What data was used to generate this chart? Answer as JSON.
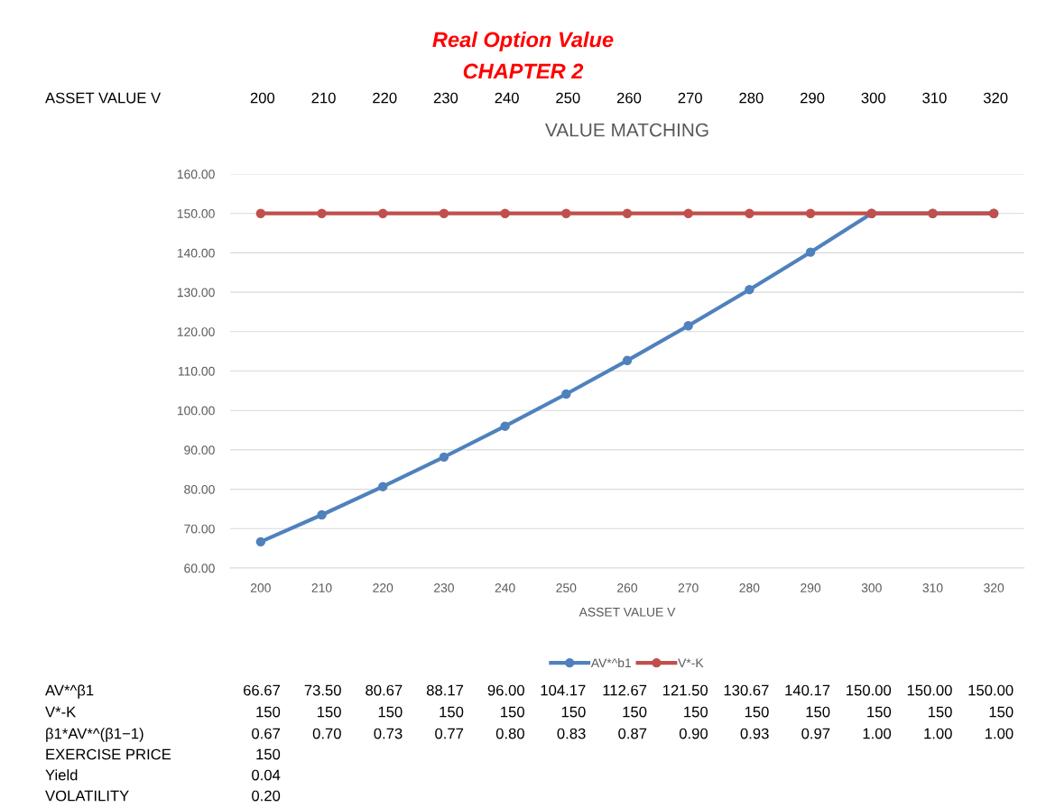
{
  "chart_data": {
    "type": "line",
    "title": "VALUE MATCHING",
    "xlabel": "ASSET VALUE V",
    "categories": [
      "200",
      "210",
      "220",
      "230",
      "240",
      "250",
      "260",
      "270",
      "280",
      "290",
      "300",
      "310",
      "320"
    ],
    "series": [
      {
        "name": "AV*^b1",
        "color": "#4f81bd",
        "values": [
          66.67,
          73.5,
          80.67,
          88.17,
          96.0,
          104.17,
          112.67,
          121.5,
          130.67,
          140.17,
          150.0,
          150.0,
          150.0
        ],
        "value_labels": [
          "66.67",
          "73.50",
          "80.67",
          "88.17",
          "96.00",
          "104.17",
          "112.67",
          "121.50",
          "130.67",
          "140.17",
          "150.00",
          "150.00",
          "150.00"
        ]
      },
      {
        "name": "V*-K",
        "color": "#c0504d",
        "values": [
          150,
          150,
          150,
          150,
          150,
          150,
          150,
          150,
          150,
          150,
          150,
          150,
          150
        ],
        "value_labels": [
          "150",
          "150",
          "150",
          "150",
          "150",
          "150",
          "150",
          "150",
          "150",
          "150",
          "150",
          "150",
          "150"
        ]
      }
    ],
    "ylim": [
      60,
      160
    ],
    "yticks": [
      {
        "value": 60,
        "label": "60.00"
      },
      {
        "value": 70,
        "label": "70.00"
      },
      {
        "value": 80,
        "label": "80.00"
      },
      {
        "value": 90,
        "label": "90.00"
      },
      {
        "value": 100,
        "label": "100.00"
      },
      {
        "value": 110,
        "label": "110.00"
      },
      {
        "value": 120,
        "label": "120.00"
      },
      {
        "value": 130,
        "label": "130.00"
      },
      {
        "value": 140,
        "label": "140.00"
      },
      {
        "value": 150,
        "label": "150.00"
      },
      {
        "value": 160,
        "label": "160.00"
      }
    ],
    "grid": "y",
    "legend": "bottom",
    "marker": "circle",
    "line_style": "solid",
    "annotations": [
      "Real Option Value",
      "CHAPTER 2",
      "ASSET VALUE V",
      "AV*^β1",
      "V*-K",
      "β1*AV*^(β1−1)",
      "0.67",
      "0.70",
      "0.73",
      "0.77",
      "0.80",
      "0.83",
      "0.87",
      "0.90",
      "0.93",
      "0.97",
      "1.00",
      "1.00",
      "1.00",
      "EXERCISE PRICE",
      "150",
      "Yield",
      "0.04",
      "VOLATILITY",
      "0.20"
    ]
  }
}
